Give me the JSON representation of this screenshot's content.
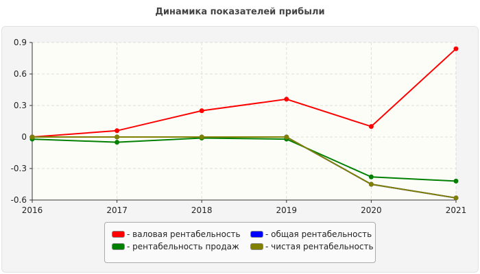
{
  "chart_data": {
    "type": "line",
    "title": "Динамика показателей прибыли",
    "x": [
      "2016",
      "2017",
      "2018",
      "2019",
      "2020",
      "2021"
    ],
    "ylim": [
      -0.6,
      0.9
    ],
    "yticks": [
      "0.9",
      "0.6",
      "0.3",
      "0",
      "-0.3",
      "-0.6"
    ],
    "ytick_values": [
      0.9,
      0.6,
      0.3,
      0,
      -0.3,
      -0.6
    ],
    "grid": true,
    "legend_position": "bottom",
    "series": [
      {
        "name": "- валовая рентабельность",
        "color": "#ff0000",
        "values": [
          0.0,
          0.06,
          0.25,
          0.36,
          0.1,
          0.84
        ]
      },
      {
        "name": "- общая рентабельность",
        "color": "#0000ff",
        "values": [
          0.0,
          0.0,
          0.0,
          0.0,
          -0.45,
          -0.58
        ]
      },
      {
        "name": "- рентабельность продаж",
        "color": "#008000",
        "values": [
          -0.02,
          -0.05,
          -0.01,
          -0.02,
          -0.38,
          -0.42
        ]
      },
      {
        "name": "- чистая рентабельность",
        "color": "#808000",
        "values": [
          0.0,
          0.0,
          0.0,
          0.0,
          -0.45,
          -0.58
        ]
      }
    ]
  }
}
